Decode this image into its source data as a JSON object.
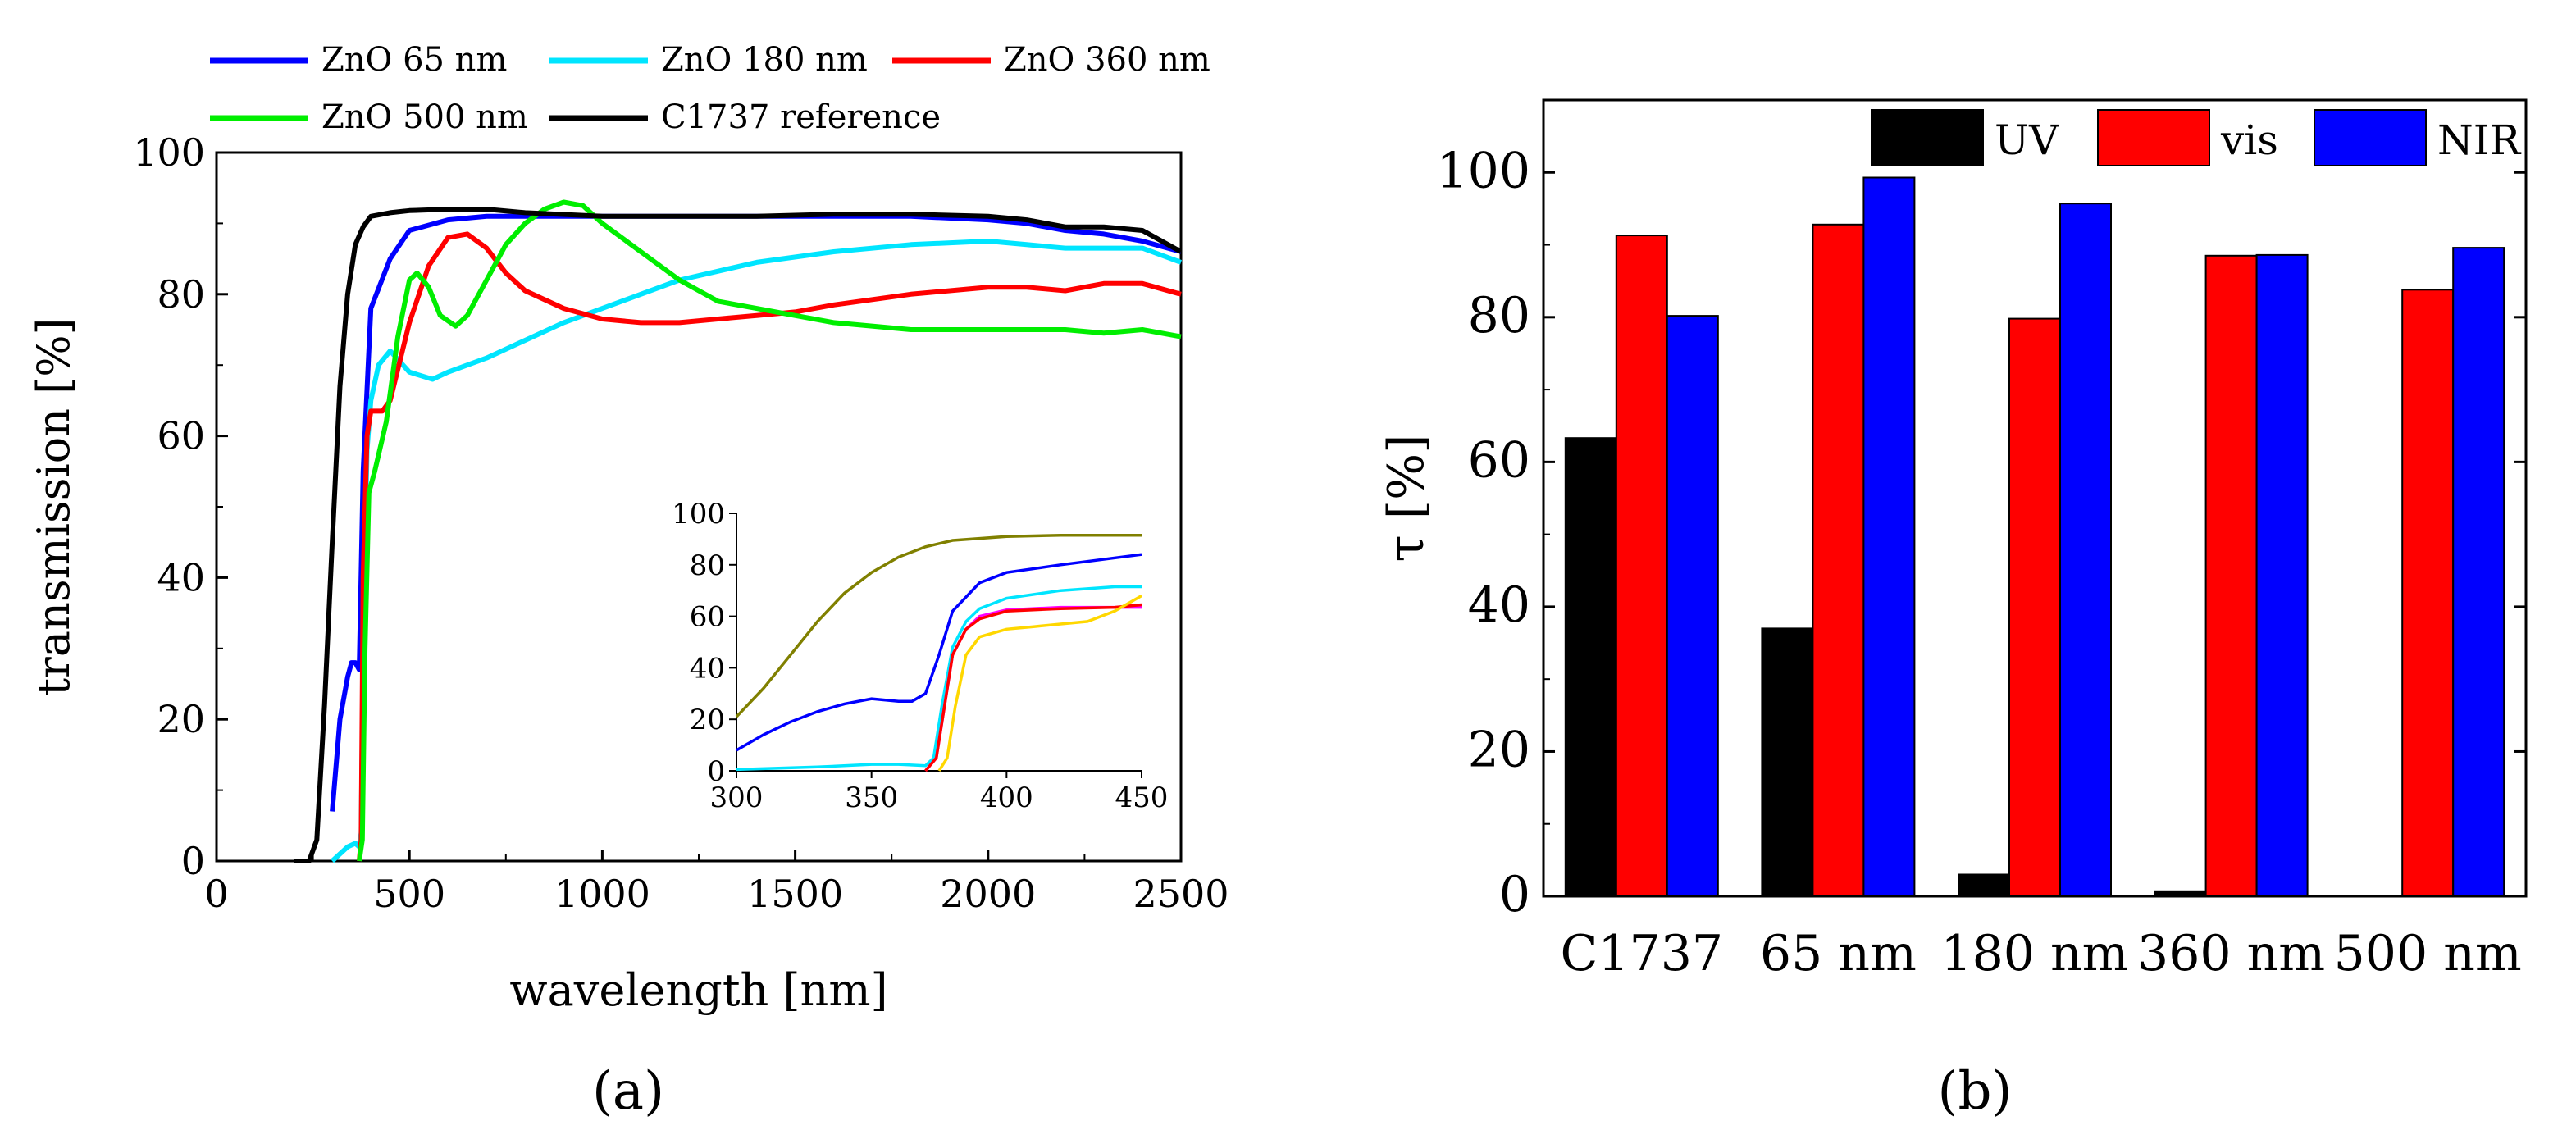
{
  "chart_data": [
    {
      "panel": "a",
      "type": "line",
      "xlabel": "wavelength [nm]",
      "ylabel": "transmission [%]",
      "xlim": [
        0,
        2500
      ],
      "ylim": [
        0,
        100
      ],
      "xticks": [
        "0",
        "500",
        "1000",
        "1500",
        "2000",
        "2500"
      ],
      "yticks": [
        "0",
        "20",
        "40",
        "60",
        "80",
        "100"
      ],
      "grid": false,
      "legend_position": "top",
      "series": [
        {
          "name": "ZnO 65 nm",
          "color": "#0000ff",
          "x": [
            300,
            320,
            340,
            350,
            360,
            370,
            380,
            400,
            450,
            500,
            600,
            700,
            800,
            900,
            1000,
            1200,
            1400,
            1600,
            1800,
            2000,
            2100,
            2200,
            2300,
            2400,
            2500
          ],
          "y": [
            7,
            20,
            26,
            28,
            28,
            27,
            55,
            78,
            85,
            89,
            90.5,
            91,
            91,
            91,
            91,
            91,
            91,
            91,
            91,
            90.5,
            90,
            89,
            88.5,
            87.5,
            86
          ]
        },
        {
          "name": "ZnO 180 nm",
          "color": "#00e5ff",
          "x": [
            300,
            340,
            360,
            370,
            375,
            380,
            390,
            400,
            420,
            450,
            500,
            560,
            600,
            700,
            800,
            900,
            1000,
            1200,
            1400,
            1600,
            1800,
            2000,
            2100,
            2200,
            2300,
            2400,
            2500
          ],
          "y": [
            0,
            2,
            2.5,
            2,
            4,
            30,
            58,
            65,
            70,
            72,
            69,
            68,
            69,
            71,
            73.5,
            76,
            78,
            82,
            84.5,
            86,
            87,
            87.5,
            87,
            86.5,
            86.5,
            86.5,
            84.5
          ]
        },
        {
          "name": "ZnO 360 nm",
          "color": "#ff0000",
          "x": [
            370,
            375,
            380,
            390,
            400,
            430,
            450,
            500,
            550,
            600,
            650,
            700,
            750,
            800,
            900,
            1000,
            1100,
            1200,
            1300,
            1400,
            1500,
            1600,
            1800,
            2000,
            2100,
            2200,
            2300,
            2400,
            2500
          ],
          "y": [
            0,
            3,
            40,
            60,
            63.5,
            63.5,
            65,
            76,
            84,
            88,
            88.5,
            86.5,
            83,
            80.5,
            78,
            76.5,
            76,
            76,
            76.5,
            77,
            77.5,
            78.5,
            80,
            81,
            81,
            80.5,
            81.5,
            81.5,
            80
          ]
        },
        {
          "name": "ZnO 500 nm",
          "color": "#00ee00",
          "x": [
            370,
            378,
            385,
            395,
            410,
            440,
            470,
            500,
            520,
            550,
            580,
            620,
            650,
            700,
            750,
            800,
            850,
            900,
            950,
            1000,
            1100,
            1200,
            1300,
            1400,
            1600,
            1800,
            2000,
            2200,
            2300,
            2400,
            2500
          ],
          "y": [
            0,
            3,
            30,
            52,
            55,
            62,
            74,
            82,
            83,
            81,
            77,
            75.5,
            77,
            82,
            87,
            90,
            92,
            93,
            92.5,
            90,
            86,
            82,
            79,
            78,
            76,
            75,
            75,
            75,
            74.5,
            75,
            74
          ]
        },
        {
          "name": "C1737 reference",
          "color": "#000000",
          "x": [
            200,
            240,
            260,
            280,
            300,
            320,
            340,
            360,
            380,
            400,
            450,
            500,
            600,
            700,
            800,
            1000,
            1200,
            1400,
            1600,
            1800,
            2000,
            2100,
            2200,
            2300,
            2400,
            2500
          ],
          "y": [
            0,
            0,
            3,
            22,
            45,
            67,
            80,
            87,
            89.5,
            91,
            91.5,
            91.8,
            92,
            92,
            91.5,
            91,
            91,
            91,
            91.3,
            91.3,
            91,
            90.5,
            89.5,
            89.5,
            89,
            86
          ]
        }
      ],
      "inset": {
        "type": "line",
        "xlim": [
          300,
          450
        ],
        "ylim": [
          0,
          100
        ],
        "xticks": [
          "300",
          "350",
          "400",
          "450"
        ],
        "yticks": [
          "0",
          "20",
          "40",
          "60",
          "80",
          "100"
        ],
        "series": [
          {
            "color": "#808000",
            "x": [
              300,
              310,
              320,
              330,
              340,
              350,
              360,
              370,
              380,
              400,
              420,
              450
            ],
            "y": [
              21,
              32,
              45,
              58,
              69,
              77,
              83,
              87,
              89.5,
              91,
              91.5,
              91.5
            ]
          },
          {
            "color": "#0000ff",
            "x": [
              300,
              310,
              320,
              330,
              340,
              350,
              360,
              365,
              370,
              375,
              380,
              390,
              400,
              420,
              450
            ],
            "y": [
              8,
              14,
              19,
              23,
              26,
              28,
              27,
              27,
              30,
              45,
              62,
              73,
              77,
              80,
              84
            ]
          },
          {
            "color": "#00e5ff",
            "x": [
              300,
              330,
              350,
              360,
              370,
              373,
              376,
              380,
              385,
              390,
              400,
              420,
              440,
              450
            ],
            "y": [
              0.5,
              1.5,
              2.5,
              2.5,
              2,
              5,
              25,
              48,
              58,
              63,
              67,
              70,
              71.5,
              71.5
            ]
          },
          {
            "color": "#ff00ff",
            "x": [
              370,
              374,
              377,
              380,
              385,
              390,
              400,
              420,
              450
            ],
            "y": [
              0,
              5,
              25,
              45,
              55,
              60,
              62.5,
              63.5,
              63.5
            ]
          },
          {
            "color": "#ff0000",
            "x": [
              370,
              374,
              377,
              380,
              385,
              390,
              400,
              420,
              440,
              450
            ],
            "y": [
              0,
              5,
              25,
              45,
              55,
              59,
              62,
              63,
              63.5,
              64.5
            ]
          },
          {
            "color": "#ffd700",
            "x": [
              375,
              378,
              381,
              385,
              390,
              400,
              410,
              420,
              430,
              440,
              450
            ],
            "y": [
              0,
              5,
              25,
              45,
              52,
              55,
              56,
              57,
              58,
              62,
              68
            ]
          }
        ]
      }
    },
    {
      "panel": "b",
      "type": "bar",
      "ylabel": "τ [%]",
      "ylim": [
        0,
        110
      ],
      "yticks": [
        "0",
        "20",
        "40",
        "60",
        "80",
        "100"
      ],
      "categories": [
        "C1737",
        "65 nm",
        "180 nm",
        "360 nm",
        "500 nm"
      ],
      "grid": false,
      "legend_position": "top",
      "series": [
        {
          "name": "UV",
          "color": "#000000",
          "values": [
            63.3,
            37,
            3,
            0.7,
            0
          ]
        },
        {
          "name": "vis",
          "color": "#ff0000",
          "values": [
            91.3,
            92.8,
            79.8,
            88.5,
            83.8
          ]
        },
        {
          "name": "NIR",
          "color": "#0000ff",
          "values": [
            80.2,
            99.3,
            95.7,
            88.6,
            89.6
          ]
        }
      ]
    }
  ],
  "panel_labels": {
    "a": "(a)",
    "b": "(b)"
  }
}
